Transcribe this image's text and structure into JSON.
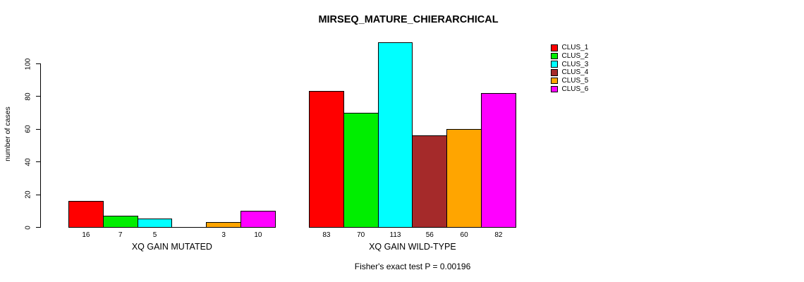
{
  "chart_data": {
    "type": "bar",
    "title": "MIRSEQ_MATURE_CHIERARCHICAL",
    "ylabel": "number of cases",
    "xlabel": "",
    "yticks": [
      0,
      20,
      40,
      60,
      80,
      100
    ],
    "ylim": [
      0,
      117
    ],
    "grid": false,
    "legend_position": "right",
    "categories": [
      "XQ GAIN MUTATED",
      "XQ GAIN WILD-TYPE"
    ],
    "series": [
      {
        "name": "CLUS_1",
        "color": "#FF0000",
        "values": [
          16,
          83
        ]
      },
      {
        "name": "CLUS_2",
        "color": "#00EE00",
        "values": [
          7,
          70
        ]
      },
      {
        "name": "CLUS_3",
        "color": "#00FFFF",
        "values": [
          5,
          113
        ]
      },
      {
        "name": "CLUS_4",
        "color": "#A52A2A",
        "values": [
          0,
          56
        ]
      },
      {
        "name": "CLUS_5",
        "color": "#FFA500",
        "values": [
          3,
          60
        ]
      },
      {
        "name": "CLUS_6",
        "color": "#FF00FF",
        "values": [
          10,
          82
        ]
      }
    ],
    "annotation": "Fisher's exact test P = 0.00196",
    "axis_color": "#000000",
    "background_color": "#FFFFFF"
  }
}
